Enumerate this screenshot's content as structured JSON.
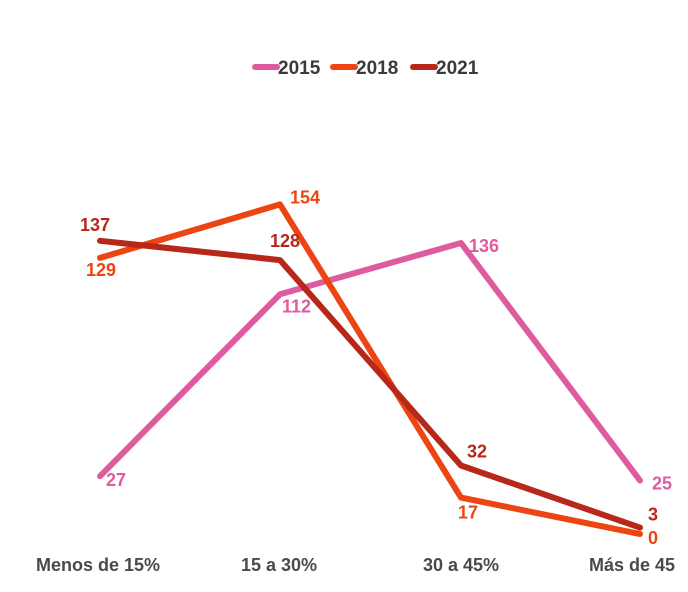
{
  "chart_data": {
    "type": "line",
    "title": "",
    "xlabel": "",
    "ylabel": "",
    "categories": [
      "Menos de 15%",
      "15 a 30%",
      "30 a 45%",
      "Más de 45"
    ],
    "ylim": [
      0,
      160
    ],
    "grid": false,
    "legend": "top",
    "series": [
      {
        "name": "2015",
        "color": "#de5ba0",
        "values": [
          27,
          112,
          136,
          25
        ],
        "labels": [
          "27",
          "112",
          "136",
          "25"
        ]
      },
      {
        "name": "2018",
        "color": "#ec4412",
        "values": [
          129,
          154,
          17,
          0
        ],
        "labels": [
          "129",
          "154",
          "17",
          "0"
        ]
      },
      {
        "name": "2021",
        "color": "#b8281a",
        "values": [
          137,
          128,
          32,
          3
        ],
        "labels": [
          "137",
          "128",
          "32",
          "3"
        ]
      }
    ]
  }
}
